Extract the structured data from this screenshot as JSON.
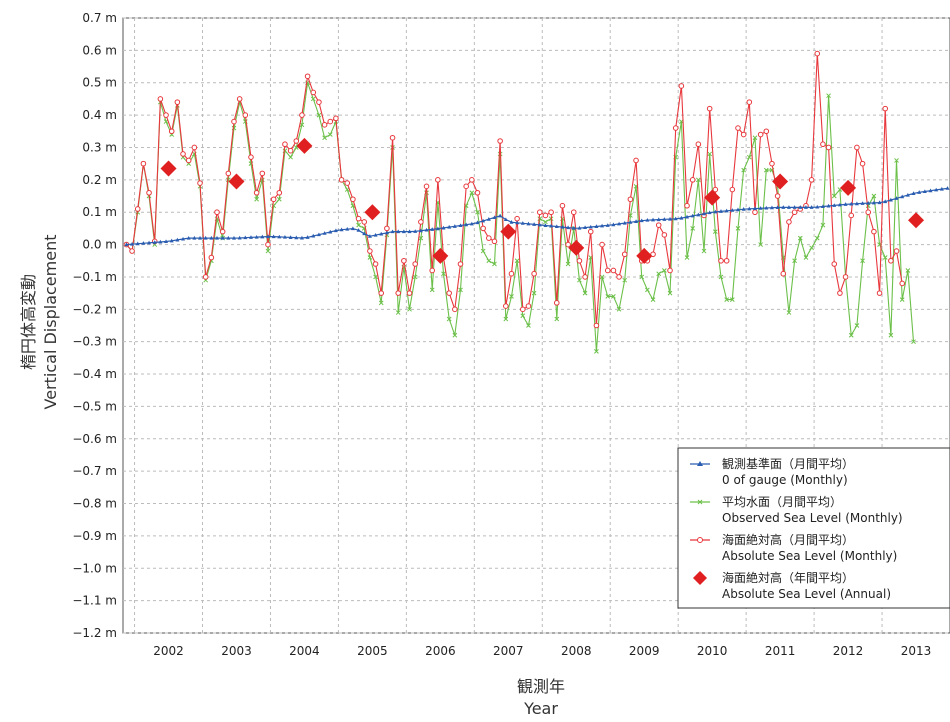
{
  "chart_data": {
    "type": "line",
    "ylabel_ja": "楕円体高変動",
    "ylabel": "Vertical Displacement",
    "xlabel_ja": "観測年",
    "xlabel": "Year",
    "ylim": [
      -1.2,
      0.7
    ],
    "y_ticks": [
      "0.7 m",
      "0.6 m",
      "0.5 m",
      "0.4 m",
      "0.3 m",
      "0.2 m",
      "0.1 m",
      "0.0 m",
      "−0.1 m",
      "−0.2 m",
      "−0.3 m",
      "−0.4 m",
      "−0.5 m",
      "−0.6 m",
      "−0.7 m",
      "−0.8 m",
      "−0.9 m",
      "−1.0 m",
      "−1.1 m",
      "−1.2 m"
    ],
    "x_ticks": [
      "2002",
      "2003",
      "2004",
      "2005",
      "2006",
      "2007",
      "2008",
      "2009",
      "2010",
      "2011",
      "2012",
      "2013"
    ],
    "xlim": [
      2001.33,
      2013.5
    ],
    "grid": true,
    "legend_position": "bottom-right",
    "colors": {
      "gauge": "#2a5db0",
      "observed": "#6cc04a",
      "absolute_monthly": "#e8383d",
      "absolute_annual": "#e02020"
    },
    "series": [
      {
        "name": "観測基準面（月間平均）",
        "name_en": "0 of gauge (Monthly)",
        "key": "gauge",
        "x_start": 2001.38,
        "x_step": 0.0833333,
        "anchors": [
          [
            2001.38,
            0.0
          ],
          [
            2002.0,
            0.01
          ],
          [
            2002.3,
            0.02
          ],
          [
            2003.0,
            0.02
          ],
          [
            2003.5,
            0.025
          ],
          [
            2004.0,
            0.02
          ],
          [
            2004.2,
            0.03
          ],
          [
            2004.5,
            0.045
          ],
          [
            2004.75,
            0.05
          ],
          [
            2004.95,
            0.025
          ],
          [
            2005.3,
            0.04
          ],
          [
            2005.6,
            0.04
          ],
          [
            2006.0,
            0.05
          ],
          [
            2006.5,
            0.065
          ],
          [
            2006.9,
            0.09
          ],
          [
            2007.0,
            0.07
          ],
          [
            2007.5,
            0.06
          ],
          [
            2008.0,
            0.05
          ],
          [
            2008.5,
            0.06
          ],
          [
            2009.0,
            0.075
          ],
          [
            2009.5,
            0.08
          ],
          [
            2010.0,
            0.1
          ],
          [
            2010.5,
            0.11
          ],
          [
            2011.0,
            0.115
          ],
          [
            2011.5,
            0.115
          ],
          [
            2012.0,
            0.125
          ],
          [
            2012.5,
            0.13
          ],
          [
            2013.0,
            0.16
          ],
          [
            2013.5,
            0.175
          ]
        ]
      },
      {
        "name": "平均水面（月間平均）",
        "name_en": "Observed Sea Level (Monthly)",
        "key": "observed",
        "x_start": 2001.38,
        "x_step": 0.0833333,
        "values": [
          0.0,
          -0.02,
          0.1,
          0.25,
          0.15,
          0.0,
          0.44,
          0.38,
          0.34,
          0.43,
          0.27,
          0.25,
          0.28,
          0.18,
          -0.11,
          -0.05,
          0.08,
          0.02,
          0.2,
          0.36,
          0.44,
          0.38,
          0.25,
          0.14,
          0.2,
          -0.02,
          0.12,
          0.14,
          0.29,
          0.27,
          0.3,
          0.37,
          0.5,
          0.45,
          0.4,
          0.33,
          0.34,
          0.38,
          0.2,
          0.17,
          0.12,
          0.06,
          0.05,
          -0.04,
          -0.1,
          -0.18,
          0.03,
          0.3,
          -0.21,
          -0.07,
          -0.2,
          -0.1,
          0.02,
          0.16,
          -0.14,
          0.13,
          -0.09,
          -0.23,
          -0.28,
          -0.14,
          0.12,
          0.16,
          0.1,
          -0.02,
          -0.05,
          -0.06,
          0.28,
          -0.23,
          -0.16,
          -0.05,
          -0.22,
          -0.25,
          -0.15,
          0.08,
          0.07,
          0.08,
          -0.23,
          0.08,
          -0.06,
          0.05,
          -0.11,
          -0.15,
          -0.04,
          -0.33,
          -0.1,
          -0.16,
          -0.16,
          -0.2,
          -0.11,
          0.09,
          0.18,
          -0.1,
          -0.14,
          -0.17,
          -0.09,
          -0.08,
          -0.15,
          0.27,
          0.38,
          -0.04,
          0.05,
          0.2,
          -0.02,
          0.28,
          0.04,
          -0.1,
          -0.17,
          -0.17,
          0.05,
          0.23,
          0.27,
          0.33,
          0.0,
          0.23,
          0.23,
          0.18,
          -0.04,
          -0.21,
          -0.05,
          0.02,
          -0.04,
          -0.01,
          0.02,
          0.06,
          0.46,
          0.15,
          0.17,
          -0.1,
          -0.28,
          -0.25,
          -0.05,
          0.12,
          0.15,
          0.0,
          -0.04,
          -0.28,
          0.26,
          -0.17,
          -0.08,
          -0.3
        ]
      },
      {
        "name": "海面絶対高（月間平均）",
        "name_en": "Absolute Sea Level (Monthly)",
        "key": "absolute_monthly",
        "x_start": 2001.38,
        "x_step": 0.0833333,
        "values": [
          0.0,
          -0.02,
          0.11,
          0.25,
          0.16,
          0.01,
          0.45,
          0.4,
          0.35,
          0.44,
          0.28,
          0.26,
          0.3,
          0.19,
          -0.1,
          -0.04,
          0.1,
          0.04,
          0.22,
          0.38,
          0.45,
          0.4,
          0.27,
          0.16,
          0.22,
          0.0,
          0.14,
          0.16,
          0.31,
          0.29,
          0.32,
          0.4,
          0.52,
          0.47,
          0.44,
          0.37,
          0.38,
          0.39,
          0.2,
          0.19,
          0.14,
          0.08,
          0.07,
          -0.02,
          -0.06,
          -0.15,
          0.05,
          0.33,
          -0.15,
          -0.05,
          -0.15,
          -0.06,
          0.07,
          0.18,
          -0.08,
          0.2,
          -0.04,
          -0.15,
          -0.2,
          -0.06,
          0.18,
          0.2,
          0.16,
          0.05,
          0.02,
          0.01,
          0.32,
          -0.19,
          -0.09,
          0.08,
          -0.2,
          -0.19,
          -0.09,
          0.1,
          0.09,
          0.1,
          -0.18,
          0.12,
          0.0,
          0.1,
          -0.05,
          -0.1,
          0.04,
          -0.25,
          0.0,
          -0.08,
          -0.08,
          -0.1,
          -0.03,
          0.14,
          0.26,
          -0.05,
          -0.05,
          -0.03,
          0.06,
          0.03,
          -0.08,
          0.36,
          0.49,
          0.12,
          0.2,
          0.31,
          0.09,
          0.42,
          0.17,
          -0.05,
          -0.05,
          0.17,
          0.36,
          0.34,
          0.44,
          0.1,
          0.34,
          0.35,
          0.25,
          0.15,
          -0.09,
          0.07,
          0.1,
          0.11,
          0.12,
          0.2,
          0.59,
          0.31,
          0.3,
          -0.06,
          -0.15,
          -0.1,
          0.09,
          0.3,
          0.25,
          0.1,
          0.04,
          -0.15,
          0.42,
          -0.05,
          -0.02,
          -0.12
        ]
      },
      {
        "name": "海面絶対高（年間平均）",
        "name_en": "Absolute Sea Level (Annual)",
        "key": "absolute_annual",
        "x": [
          2002,
          2003,
          2004,
          2005,
          2006,
          2007,
          2008,
          2009,
          2010,
          2011,
          2012,
          2013
        ],
        "values": [
          0.235,
          0.195,
          0.305,
          0.1,
          -0.035,
          0.04,
          -0.01,
          -0.035,
          0.145,
          0.195,
          0.175,
          0.075
        ]
      }
    ]
  }
}
